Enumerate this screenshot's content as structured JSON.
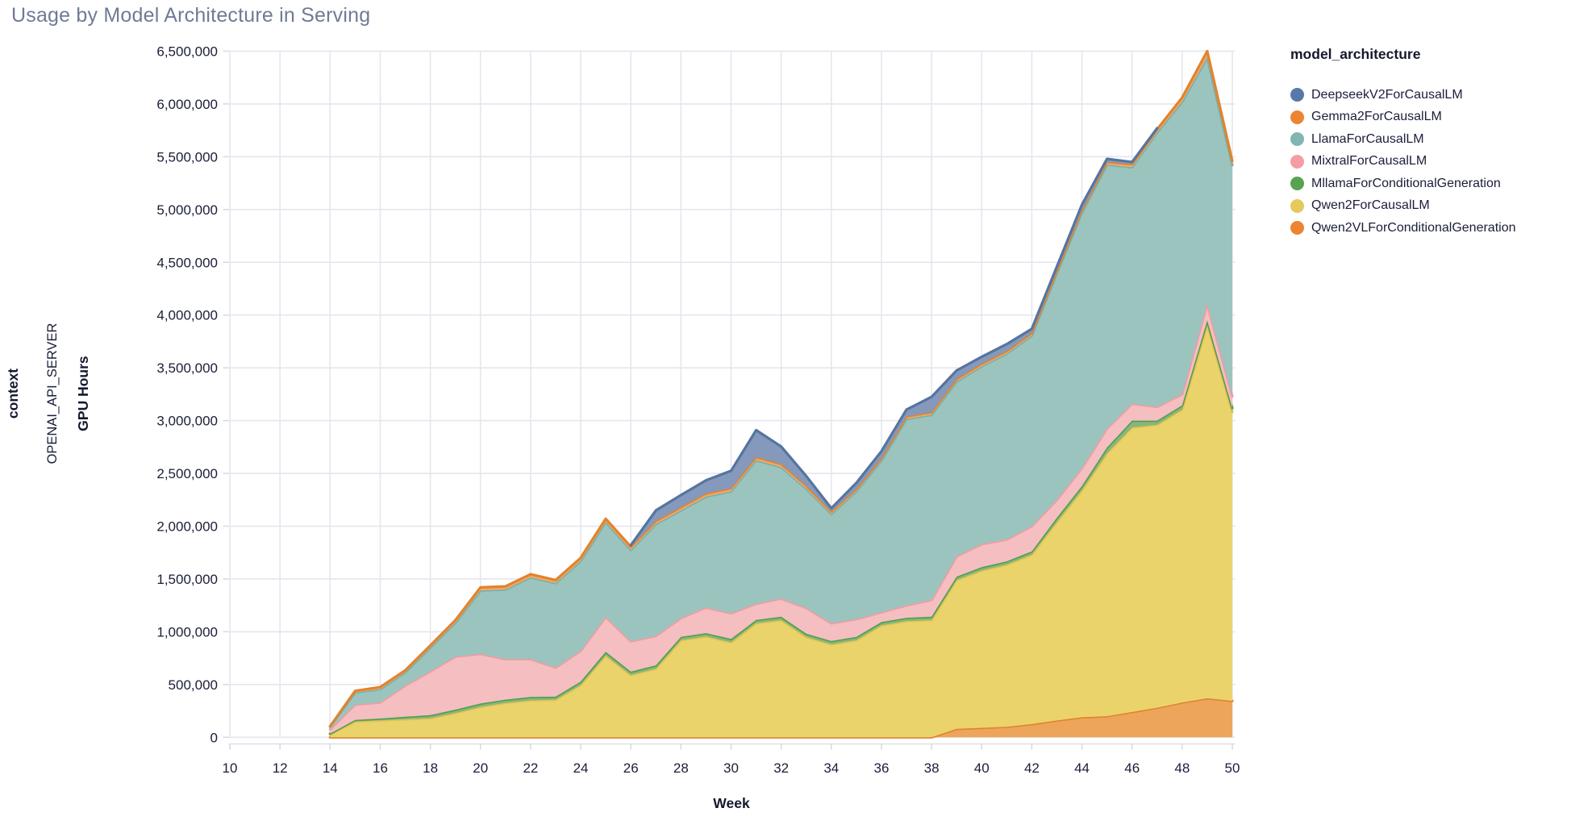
{
  "header": {
    "title": "Usage by Model Architecture in Serving"
  },
  "facet": {
    "row_header": "context",
    "row_value": "OPENAI_API_SERVER"
  },
  "legend": {
    "title": "model_architecture",
    "items": [
      {
        "label": "DeepseekV2ForCausalLM",
        "color": "#5878A8"
      },
      {
        "label": "Gemma2ForCausalLM",
        "color": "#EC8532"
      },
      {
        "label": "LlamaForCausalLM",
        "color": "#82B6B0"
      },
      {
        "label": "MixtralForCausalLM",
        "color": "#F49DA2"
      },
      {
        "label": "MllamaForConditionalGeneration",
        "color": "#57A353"
      },
      {
        "label": "Qwen2ForCausalLM",
        "color": "#E6C95B"
      },
      {
        "label": "Qwen2VLForConditionalGeneration",
        "color": "#EC8532"
      }
    ]
  },
  "chart_data": {
    "type": "area",
    "stacked": true,
    "title": "Usage by Model Architecture in Serving",
    "xlabel": "Week",
    "ylabel": "GPU Hours",
    "xlim": [
      10,
      50
    ],
    "ylim": [
      0,
      6500000
    ],
    "grid": true,
    "legend_position": "right",
    "x_ticks": [
      10,
      12,
      14,
      16,
      18,
      20,
      22,
      24,
      26,
      28,
      30,
      32,
      34,
      36,
      38,
      40,
      42,
      44,
      46,
      48,
      50
    ],
    "y_ticks": [
      0,
      500000,
      1000000,
      1500000,
      2000000,
      2500000,
      3000000,
      3500000,
      4000000,
      4500000,
      5000000,
      5500000,
      6000000,
      6500000
    ],
    "x": [
      14,
      15,
      16,
      17,
      18,
      19,
      20,
      21,
      22,
      23,
      24,
      25,
      26,
      27,
      28,
      29,
      30,
      31,
      32,
      33,
      34,
      35,
      36,
      37,
      38,
      39,
      40,
      41,
      42,
      43,
      44,
      45,
      46,
      47,
      48,
      49,
      50
    ],
    "series": [
      {
        "name": "Qwen2VLForConditionalGeneration",
        "fill": "#EDA55C",
        "stroke": "#E2832E",
        "values": [
          0,
          0,
          0,
          0,
          0,
          0,
          0,
          0,
          0,
          0,
          0,
          0,
          0,
          0,
          0,
          0,
          0,
          0,
          0,
          0,
          0,
          0,
          0,
          0,
          0,
          80000,
          90000,
          100000,
          125000,
          160000,
          190000,
          200000,
          240000,
          280000,
          330000,
          370000,
          345000
        ]
      },
      {
        "name": "Qwen2ForCausalLM",
        "fill": "#EBD36B",
        "stroke": "#E5C44F",
        "values": [
          25000,
          150000,
          160000,
          170000,
          180000,
          230000,
          288000,
          325000,
          350000,
          355000,
          495000,
          775000,
          590000,
          650000,
          920000,
          955000,
          900000,
          1080000,
          1110000,
          950000,
          880000,
          920000,
          1060000,
          1100000,
          1110000,
          1410000,
          1490000,
          1535000,
          1605000,
          1880000,
          2150000,
          2490000,
          2695000,
          2680000,
          2775000,
          3535000,
          2735000
        ]
      },
      {
        "name": "MllamaForConditionalGeneration",
        "fill": "#85B77B",
        "stroke": "#509E50",
        "values": [
          10000,
          15000,
          18000,
          25000,
          30000,
          32000,
          32000,
          32000,
          32000,
          30000,
          32000,
          35000,
          32000,
          32000,
          32000,
          32000,
          32000,
          32000,
          32000,
          32000,
          32000,
          32000,
          32000,
          32000,
          32000,
          32000,
          32000,
          32000,
          32000,
          40000,
          40000,
          55000,
          65000,
          40000,
          40000,
          45000,
          40000
        ]
      },
      {
        "name": "MixtralForCausalLM",
        "fill": "#F5BEC0",
        "stroke": "#F19CA1",
        "values": [
          40000,
          145000,
          152000,
          295000,
          415000,
          503000,
          470000,
          383000,
          358000,
          275000,
          293000,
          330000,
          288000,
          278000,
          178000,
          243000,
          243000,
          153000,
          173000,
          243000,
          168000,
          168000,
          93000,
          118000,
          158000,
          193000,
          218000,
          208000,
          238000,
          170000,
          170000,
          180000,
          160000,
          130000,
          105000,
          155000,
          110000
        ]
      },
      {
        "name": "LlamaForCausalLM",
        "fill": "#9CC4BE",
        "stroke": "#77B1AB",
        "values": [
          25000,
          115000,
          125000,
          125000,
          225000,
          320000,
          600000,
          660000,
          775000,
          800000,
          850000,
          900000,
          865000,
          1060000,
          1020000,
          1050000,
          1155000,
          1360000,
          1245000,
          1130000,
          1035000,
          1210000,
          1435000,
          1765000,
          1755000,
          1655000,
          1685000,
          1760000,
          1805000,
          2145000,
          2420000,
          2500000,
          2240000,
          2600000,
          2770000,
          2335000,
          2190000
        ]
      },
      {
        "name": "Gemma2ForCausalLM",
        "fill": "#F2A966",
        "stroke": "#E2832E",
        "values": [
          5000,
          15000,
          20000,
          20000,
          20000,
          25000,
          30000,
          30000,
          30000,
          30000,
          30000,
          30000,
          30000,
          30000,
          30000,
          30000,
          30000,
          30000,
          30000,
          30000,
          25000,
          25000,
          25000,
          25000,
          25000,
          25000,
          25000,
          25000,
          25000,
          25000,
          25000,
          25000,
          30000,
          30000,
          40000,
          60000,
          40000
        ]
      },
      {
        "name": "DeepseekV2ForCausalLM",
        "fill": "#8499BC",
        "stroke": "#56749F",
        "values": [
          null,
          null,
          null,
          null,
          null,
          null,
          null,
          null,
          null,
          null,
          null,
          null,
          15000,
          100000,
          115000,
          125000,
          165000,
          255000,
          165000,
          90000,
          30000,
          55000,
          65000,
          65000,
          145000,
          80000,
          65000,
          65000,
          40000,
          40000,
          50000,
          30000,
          20000,
          10000,
          null,
          null,
          null
        ]
      }
    ]
  },
  "style": {
    "grid_color": "#E5E6EE",
    "domain_color": "#DCDFE8",
    "tick_mark_color": "#D6D9E2",
    "tick_text_color": "#1A1E38",
    "title_color": "#6F7B95",
    "background": "#FFFFFF"
  }
}
